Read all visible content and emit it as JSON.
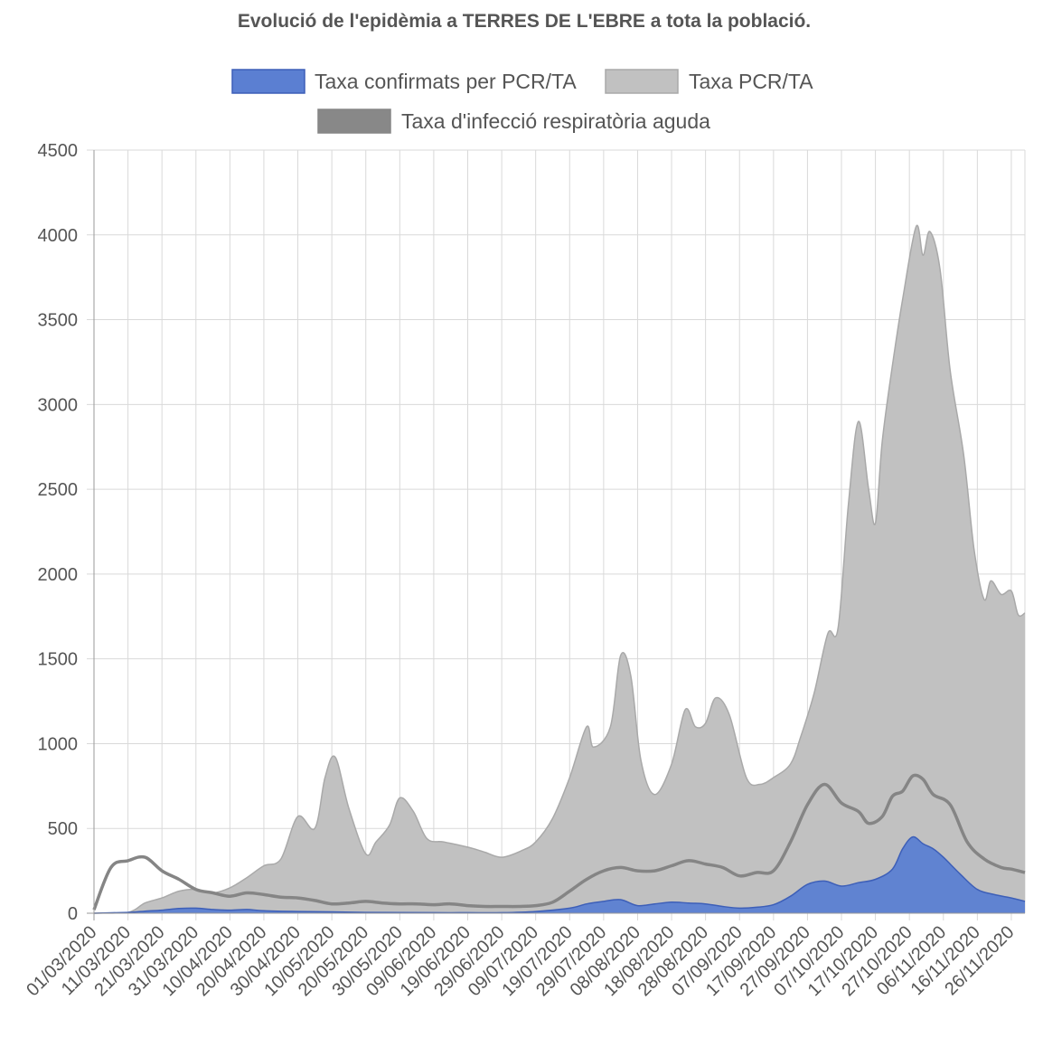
{
  "chart_data": {
    "type": "area",
    "title": "Evolució de l'epidèmia a TERRES DE L'EBRE a tota la població.",
    "xlabel": "",
    "ylabel": "",
    "ylim": [
      0,
      4500
    ],
    "yticks": [
      0,
      500,
      1000,
      1500,
      2000,
      2500,
      3000,
      3500,
      4000,
      4500
    ],
    "x_start": "01/03/2020",
    "x_end": "30/11/2020",
    "x_tick_labels": [
      "01/03/2020",
      "11/03/2020",
      "21/03/2020",
      "31/03/2020",
      "10/04/2020",
      "20/04/2020",
      "30/04/2020",
      "10/05/2020",
      "20/05/2020",
      "30/05/2020",
      "09/06/2020",
      "19/06/2020",
      "29/06/2020",
      "09/07/2020",
      "19/07/2020",
      "29/07/2020",
      "08/08/2020",
      "18/08/2020",
      "28/08/2020",
      "07/09/2020",
      "17/09/2020",
      "27/09/2020",
      "07/10/2020",
      "17/10/2020",
      "27/10/2020",
      "06/11/2020",
      "16/11/2020",
      "26/11/2020"
    ],
    "grid": true,
    "legend_position": "top",
    "series": [
      {
        "name": "Taxa confirmats per PCR/TA",
        "fill": "#5b7fd2",
        "stroke": "#3d5fb8",
        "points": [
          [
            "01/03/2020",
            0
          ],
          [
            "11/03/2020",
            5
          ],
          [
            "16/03/2020",
            12
          ],
          [
            "21/03/2020",
            18
          ],
          [
            "26/03/2020",
            28
          ],
          [
            "31/03/2020",
            30
          ],
          [
            "05/04/2020",
            22
          ],
          [
            "10/04/2020",
            18
          ],
          [
            "15/04/2020",
            22
          ],
          [
            "20/04/2020",
            15
          ],
          [
            "30/04/2020",
            10
          ],
          [
            "10/05/2020",
            8
          ],
          [
            "20/05/2020",
            5
          ],
          [
            "30/05/2020",
            4
          ],
          [
            "09/06/2020",
            3
          ],
          [
            "19/06/2020",
            3
          ],
          [
            "29/06/2020",
            3
          ],
          [
            "09/07/2020",
            10
          ],
          [
            "19/07/2020",
            30
          ],
          [
            "24/07/2020",
            55
          ],
          [
            "29/07/2020",
            70
          ],
          [
            "03/08/2020",
            80
          ],
          [
            "08/08/2020",
            45
          ],
          [
            "13/08/2020",
            55
          ],
          [
            "18/08/2020",
            65
          ],
          [
            "23/08/2020",
            60
          ],
          [
            "28/08/2020",
            55
          ],
          [
            "02/09/2020",
            40
          ],
          [
            "07/09/2020",
            30
          ],
          [
            "12/09/2020",
            35
          ],
          [
            "17/09/2020",
            50
          ],
          [
            "22/09/2020",
            100
          ],
          [
            "27/09/2020",
            170
          ],
          [
            "02/10/2020",
            190
          ],
          [
            "07/10/2020",
            160
          ],
          [
            "12/10/2020",
            180
          ],
          [
            "17/10/2020",
            200
          ],
          [
            "22/10/2020",
            260
          ],
          [
            "25/10/2020",
            380
          ],
          [
            "28/10/2020",
            450
          ],
          [
            "31/10/2020",
            410
          ],
          [
            "03/11/2020",
            380
          ],
          [
            "06/11/2020",
            330
          ],
          [
            "11/11/2020",
            230
          ],
          [
            "16/11/2020",
            140
          ],
          [
            "21/11/2020",
            110
          ],
          [
            "26/11/2020",
            90
          ],
          [
            "30/11/2020",
            70
          ]
        ]
      },
      {
        "name": "Taxa PCR/TA",
        "fill": "#c1c1c1",
        "stroke": "#a9a9a9",
        "points": [
          [
            "01/03/2020",
            0
          ],
          [
            "11/03/2020",
            5
          ],
          [
            "16/03/2020",
            60
          ],
          [
            "21/03/2020",
            90
          ],
          [
            "26/03/2020",
            130
          ],
          [
            "31/03/2020",
            140
          ],
          [
            "05/04/2020",
            120
          ],
          [
            "10/04/2020",
            150
          ],
          [
            "15/04/2020",
            210
          ],
          [
            "20/04/2020",
            280
          ],
          [
            "25/04/2020",
            320
          ],
          [
            "30/04/2020",
            570
          ],
          [
            "05/05/2020",
            500
          ],
          [
            "08/05/2020",
            800
          ],
          [
            "11/05/2020",
            920
          ],
          [
            "15/05/2020",
            620
          ],
          [
            "20/05/2020",
            350
          ],
          [
            "23/05/2020",
            420
          ],
          [
            "27/05/2020",
            520
          ],
          [
            "30/05/2020",
            680
          ],
          [
            "03/06/2020",
            600
          ],
          [
            "07/06/2020",
            440
          ],
          [
            "12/06/2020",
            420
          ],
          [
            "19/06/2020",
            390
          ],
          [
            "24/06/2020",
            360
          ],
          [
            "29/06/2020",
            330
          ],
          [
            "05/07/2020",
            370
          ],
          [
            "09/07/2020",
            420
          ],
          [
            "14/07/2020",
            560
          ],
          [
            "19/07/2020",
            800
          ],
          [
            "24/07/2020",
            1100
          ],
          [
            "26/07/2020",
            980
          ],
          [
            "31/07/2020",
            1100
          ],
          [
            "03/08/2020",
            1520
          ],
          [
            "06/08/2020",
            1400
          ],
          [
            "09/08/2020",
            900
          ],
          [
            "13/08/2020",
            700
          ],
          [
            "18/08/2020",
            880
          ],
          [
            "22/08/2020",
            1200
          ],
          [
            "25/08/2020",
            1100
          ],
          [
            "28/08/2020",
            1120
          ],
          [
            "31/08/2020",
            1270
          ],
          [
            "04/09/2020",
            1170
          ],
          [
            "09/09/2020",
            800
          ],
          [
            "13/09/2020",
            760
          ],
          [
            "17/09/2020",
            800
          ],
          [
            "22/09/2020",
            880
          ],
          [
            "25/09/2020",
            1040
          ],
          [
            "29/09/2020",
            1300
          ],
          [
            "03/10/2020",
            1650
          ],
          [
            "06/10/2020",
            1680
          ],
          [
            "09/10/2020",
            2400
          ],
          [
            "12/10/2020",
            2900
          ],
          [
            "15/10/2020",
            2500
          ],
          [
            "17/10/2020",
            2300
          ],
          [
            "19/10/2020",
            2780
          ],
          [
            "22/10/2020",
            3230
          ],
          [
            "25/10/2020",
            3620
          ],
          [
            "29/10/2020",
            4050
          ],
          [
            "31/10/2020",
            3880
          ],
          [
            "02/11/2020",
            4020
          ],
          [
            "05/11/2020",
            3800
          ],
          [
            "08/11/2020",
            3200
          ],
          [
            "12/11/2020",
            2700
          ],
          [
            "15/11/2020",
            2150
          ],
          [
            "18/11/2020",
            1850
          ],
          [
            "20/11/2020",
            1960
          ],
          [
            "23/11/2020",
            1880
          ],
          [
            "26/11/2020",
            1900
          ],
          [
            "28/11/2020",
            1760
          ],
          [
            "30/11/2020",
            1770
          ]
        ]
      },
      {
        "name": "Taxa d'infecció respiratòria aguda",
        "fill": "#888888",
        "stroke": "#858585",
        "points": [
          [
            "01/03/2020",
            20
          ],
          [
            "06/03/2020",
            270
          ],
          [
            "11/03/2020",
            310
          ],
          [
            "16/03/2020",
            330
          ],
          [
            "21/03/2020",
            250
          ],
          [
            "26/03/2020",
            200
          ],
          [
            "31/03/2020",
            140
          ],
          [
            "05/04/2020",
            120
          ],
          [
            "10/04/2020",
            100
          ],
          [
            "15/04/2020",
            120
          ],
          [
            "20/04/2020",
            110
          ],
          [
            "25/04/2020",
            95
          ],
          [
            "30/04/2020",
            90
          ],
          [
            "05/05/2020",
            75
          ],
          [
            "10/05/2020",
            55
          ],
          [
            "15/05/2020",
            60
          ],
          [
            "20/05/2020",
            70
          ],
          [
            "25/05/2020",
            60
          ],
          [
            "30/05/2020",
            55
          ],
          [
            "04/06/2020",
            55
          ],
          [
            "09/06/2020",
            50
          ],
          [
            "14/06/2020",
            55
          ],
          [
            "19/06/2020",
            45
          ],
          [
            "24/06/2020",
            40
          ],
          [
            "29/06/2020",
            40
          ],
          [
            "04/07/2020",
            40
          ],
          [
            "09/07/2020",
            45
          ],
          [
            "14/07/2020",
            65
          ],
          [
            "19/07/2020",
            130
          ],
          [
            "24/07/2020",
            200
          ],
          [
            "29/07/2020",
            250
          ],
          [
            "03/08/2020",
            270
          ],
          [
            "08/08/2020",
            250
          ],
          [
            "13/08/2020",
            250
          ],
          [
            "18/08/2020",
            280
          ],
          [
            "23/08/2020",
            310
          ],
          [
            "28/08/2020",
            290
          ],
          [
            "02/09/2020",
            270
          ],
          [
            "07/09/2020",
            220
          ],
          [
            "12/09/2020",
            240
          ],
          [
            "17/09/2020",
            250
          ],
          [
            "22/09/2020",
            420
          ],
          [
            "27/09/2020",
            640
          ],
          [
            "02/10/2020",
            760
          ],
          [
            "07/10/2020",
            650
          ],
          [
            "12/10/2020",
            600
          ],
          [
            "15/10/2020",
            530
          ],
          [
            "19/10/2020",
            570
          ],
          [
            "22/10/2020",
            690
          ],
          [
            "25/10/2020",
            720
          ],
          [
            "28/10/2020",
            810
          ],
          [
            "31/10/2020",
            790
          ],
          [
            "03/11/2020",
            700
          ],
          [
            "08/11/2020",
            640
          ],
          [
            "13/11/2020",
            420
          ],
          [
            "18/11/2020",
            320
          ],
          [
            "23/11/2020",
            270
          ],
          [
            "26/11/2020",
            260
          ],
          [
            "30/11/2020",
            240
          ]
        ]
      }
    ]
  }
}
